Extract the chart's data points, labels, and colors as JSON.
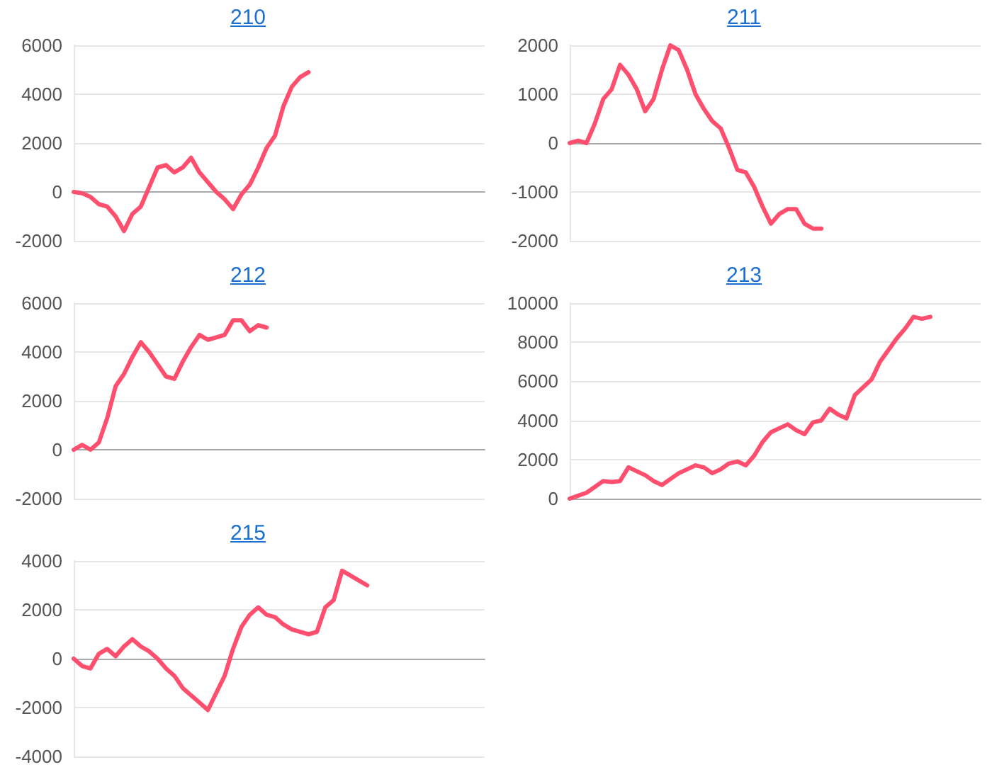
{
  "chart_data": [
    {
      "type": "line",
      "title": "210",
      "categories": [
        null,
        null,
        null,
        null,
        null,
        null,
        null,
        null,
        null,
        null,
        null,
        null,
        null,
        null,
        null,
        null,
        null,
        null,
        null,
        null,
        null,
        null,
        null,
        null,
        null,
        null,
        null,
        null,
        null,
        null,
        null,
        null,
        null,
        null,
        null,
        null,
        null,
        null,
        null,
        null,
        null,
        null,
        null,
        null,
        null,
        null,
        null,
        null,
        null,
        null
      ],
      "series": [
        {
          "color": "#ff4f6e",
          "values": [
            0,
            -50,
            -200,
            -500,
            -600,
            -1000,
            -1600,
            -900,
            -600,
            200,
            1000,
            1100,
            800,
            1000,
            1400,
            800,
            400,
            0,
            -300,
            -700,
            -100,
            300,
            1000,
            1800,
            2300,
            3500,
            4300,
            4700,
            4900,
            null,
            null,
            null,
            null,
            null,
            null,
            null,
            null,
            null,
            null,
            null,
            null,
            null,
            null,
            null,
            null,
            null,
            null,
            null,
            null,
            null
          ]
        }
      ],
      "ylim": [
        -2000,
        6000
      ],
      "yticks": [
        -2000,
        0,
        2000,
        4000,
        6000
      ],
      "grid": "y",
      "tick_labels": "y",
      "line_style": "solid"
    },
    {
      "type": "line",
      "title": "211",
      "categories": [
        null,
        null,
        null,
        null,
        null,
        null,
        null,
        null,
        null,
        null,
        null,
        null,
        null,
        null,
        null,
        null,
        null,
        null,
        null,
        null,
        null,
        null,
        null,
        null,
        null,
        null,
        null,
        null,
        null,
        null,
        null,
        null,
        null,
        null,
        null,
        null,
        null,
        null,
        null,
        null,
        null,
        null,
        null,
        null,
        null,
        null,
        null,
        null,
        null,
        null
      ],
      "series": [
        {
          "color": "#ff4f6e",
          "values": [
            0,
            50,
            0,
            400,
            900,
            1100,
            1600,
            1400,
            1100,
            650,
            900,
            1500,
            2000,
            1900,
            1500,
            1000,
            700,
            450,
            300,
            -100,
            -550,
            -600,
            -900,
            -1300,
            -1650,
            -1450,
            -1350,
            -1350,
            -1650,
            -1750,
            -1750,
            null,
            null,
            null,
            null,
            null,
            null,
            null,
            null,
            null,
            null,
            null,
            null,
            null,
            null,
            null,
            null,
            null,
            null,
            null
          ]
        }
      ],
      "ylim": [
        -2000,
        2000
      ],
      "yticks": [
        -2000,
        -1000,
        0,
        1000,
        2000
      ],
      "grid": "y",
      "tick_labels": "y",
      "line_style": "solid"
    },
    {
      "type": "line",
      "title": "212",
      "categories": [
        null,
        null,
        null,
        null,
        null,
        null,
        null,
        null,
        null,
        null,
        null,
        null,
        null,
        null,
        null,
        null,
        null,
        null,
        null,
        null,
        null,
        null,
        null,
        null,
        null,
        null,
        null,
        null,
        null,
        null,
        null,
        null,
        null,
        null,
        null,
        null,
        null,
        null,
        null,
        null,
        null,
        null,
        null,
        null,
        null,
        null,
        null,
        null,
        null,
        null
      ],
      "series": [
        {
          "color": "#ff4f6e",
          "values": [
            0,
            200,
            0,
            300,
            1300,
            2600,
            3100,
            3800,
            4400,
            4000,
            3500,
            3000,
            2900,
            3600,
            4200,
            4700,
            4500,
            4600,
            4700,
            5300,
            5300,
            4850,
            5100,
            5000,
            null,
            null,
            null,
            null,
            null,
            null,
            null,
            null,
            null,
            null,
            null,
            null,
            null,
            null,
            null,
            null,
            null,
            null,
            null,
            null,
            null,
            null,
            null,
            null,
            null,
            null
          ]
        }
      ],
      "ylim": [
        -2000,
        6000
      ],
      "yticks": [
        -2000,
        0,
        2000,
        4000,
        6000
      ],
      "grid": "y",
      "tick_labels": "y",
      "line_style": "solid"
    },
    {
      "type": "line",
      "title": "213",
      "categories": [
        null,
        null,
        null,
        null,
        null,
        null,
        null,
        null,
        null,
        null,
        null,
        null,
        null,
        null,
        null,
        null,
        null,
        null,
        null,
        null,
        null,
        null,
        null,
        null,
        null,
        null,
        null,
        null,
        null,
        null,
        null,
        null,
        null,
        null,
        null,
        null,
        null,
        null,
        null,
        null,
        null,
        null,
        null,
        null,
        null,
        null,
        null,
        null,
        null,
        null
      ],
      "series": [
        {
          "color": "#ff4f6e",
          "values": [
            0,
            150,
            300,
            600,
            900,
            850,
            900,
            1600,
            1400,
            1200,
            900,
            700,
            1000,
            1300,
            1500,
            1700,
            1600,
            1300,
            1500,
            1800,
            1900,
            1700,
            2200,
            2900,
            3400,
            3600,
            3800,
            3500,
            3300,
            3900,
            4000,
            4600,
            4300,
            4100,
            5300,
            5700,
            6100,
            7000,
            7600,
            8200,
            8700,
            9300,
            9200,
            9300,
            null,
            null,
            null,
            null,
            null,
            null
          ]
        }
      ],
      "ylim": [
        0,
        10000
      ],
      "yticks": [
        0,
        2000,
        4000,
        6000,
        8000,
        10000
      ],
      "grid": "y",
      "tick_labels": "y",
      "line_style": "solid"
    },
    {
      "type": "line",
      "title": "215",
      "categories": [
        null,
        null,
        null,
        null,
        null,
        null,
        null,
        null,
        null,
        null,
        null,
        null,
        null,
        null,
        null,
        null,
        null,
        null,
        null,
        null,
        null,
        null,
        null,
        null,
        null,
        null,
        null,
        null,
        null,
        null,
        null,
        null,
        null,
        null,
        null,
        null,
        null,
        null,
        null,
        null,
        null,
        null,
        null,
        null,
        null,
        null,
        null,
        null,
        null,
        null
      ],
      "series": [
        {
          "color": "#ff4f6e",
          "values": [
            0,
            -300,
            -400,
            200,
            400,
            100,
            500,
            800,
            500,
            300,
            0,
            -400,
            -700,
            -1200,
            -1500,
            -1800,
            -2100,
            -1400,
            -700,
            400,
            1300,
            1800,
            2100,
            1800,
            1700,
            1400,
            1200,
            1100,
            1000,
            1100,
            2100,
            2400,
            3600,
            3400,
            3200,
            3000,
            null,
            null,
            null,
            null,
            null,
            null,
            null,
            null,
            null,
            null,
            null,
            null,
            null,
            null
          ]
        }
      ],
      "ylim": [
        -4000,
        4000
      ],
      "yticks": [
        -4000,
        -2000,
        0,
        2000,
        4000
      ],
      "grid": "y",
      "tick_labels": "y",
      "line_style": "solid"
    }
  ]
}
